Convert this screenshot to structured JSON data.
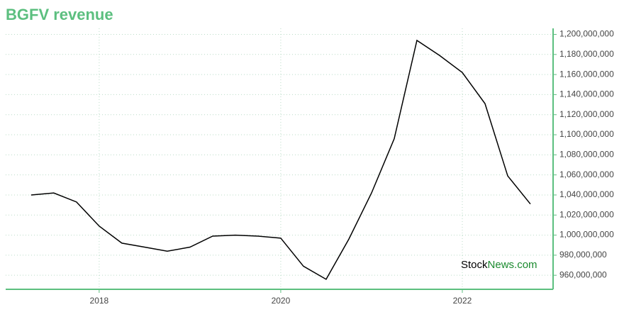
{
  "chart_data": {
    "type": "line",
    "title": "BGFV revenue",
    "x": [
      2017.25,
      2017.5,
      2017.75,
      2018.0,
      2018.25,
      2018.5,
      2018.75,
      2019.0,
      2019.25,
      2019.5,
      2019.75,
      2020.0,
      2020.25,
      2020.5,
      2020.75,
      2021.0,
      2021.25,
      2021.5,
      2021.75,
      2022.0,
      2022.25,
      2022.5,
      2022.75
    ],
    "values": [
      1040000000,
      1042000000,
      1033000000,
      1009000000,
      992000000,
      988000000,
      984000000,
      988000000,
      999000000,
      1000000000,
      999000000,
      997000000,
      969000000,
      956000000,
      996000000,
      1042000000,
      1096000000,
      1194000000,
      1179000000,
      1162000000,
      1131000000,
      1059000000,
      1031000000
    ],
    "color": "#000000",
    "xlim": [
      2016.97,
      2023.0
    ],
    "xticks": [
      2018,
      2020,
      2022
    ],
    "ylim": [
      946000000,
      1206000000
    ],
    "yticks": [
      {
        "value": 960000000,
        "label": "960,000,000"
      },
      {
        "value": 980000000,
        "label": "980,000,000"
      },
      {
        "value": 1000000000,
        "label": "1,000,000,000"
      },
      {
        "value": 1020000000,
        "label": "1,020,000,000"
      },
      {
        "value": 1040000000,
        "label": "1,040,000,000"
      },
      {
        "value": 1060000000,
        "label": "1,060,000,000"
      },
      {
        "value": 1080000000,
        "label": "1,080,000,000"
      },
      {
        "value": 1100000000,
        "label": "1,100,000,000"
      },
      {
        "value": 1120000000,
        "label": "1,120,000,000"
      },
      {
        "value": 1140000000,
        "label": "1,140,000,000"
      },
      {
        "value": 1160000000,
        "label": "1,160,000,000"
      },
      {
        "value": 1180000000,
        "label": "1,180,000,000"
      },
      {
        "value": 1200000000,
        "label": "1,200,000,000"
      }
    ],
    "grid": true,
    "watermark": {
      "part1": "Stock",
      "part2": "News.com"
    }
  }
}
